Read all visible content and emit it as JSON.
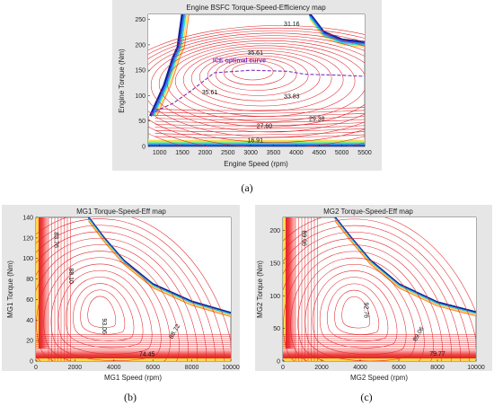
{
  "colors": {
    "contour": "#e0242a",
    "optimal_curve": "#7b2fbe",
    "panel_bg": "#ffffff",
    "figure_bg": "#e6e6e6",
    "axis": "#222222"
  },
  "chart_data": [
    {
      "id": "a",
      "type": "contour",
      "caption": "(a)",
      "title": "Engine BSFC Torque-Speed-Efficiency map",
      "xlabel": "Engine Speed (rpm)",
      "ylabel": "Engine Torque (Nm)",
      "xlim": [
        750,
        5500
      ],
      "ylim": [
        0,
        260
      ],
      "x_ticks": [
        1000,
        1500,
        2000,
        2500,
        3000,
        3500,
        4000,
        4500,
        5000,
        5500
      ],
      "y_ticks": [
        0,
        50,
        100,
        150,
        200,
        250
      ],
      "grid": false,
      "max_torque_curve": [
        {
          "x": 800,
          "y": 60
        },
        {
          "x": 1100,
          "y": 120
        },
        {
          "x": 1300,
          "y": 175
        },
        {
          "x": 1400,
          "y": 195
        },
        {
          "x": 1500,
          "y": 260
        }
      ],
      "max_torque_curve_right": [
        {
          "x": 4300,
          "y": 260
        },
        {
          "x": 4600,
          "y": 225
        },
        {
          "x": 5000,
          "y": 210
        },
        {
          "x": 5500,
          "y": 205
        }
      ],
      "optimal_curve": {
        "label": "ICE optimal curve",
        "points": [
          {
            "x": 800,
            "y": 65
          },
          {
            "x": 1300,
            "y": 85
          },
          {
            "x": 1700,
            "y": 110
          },
          {
            "x": 2200,
            "y": 145
          },
          {
            "x": 3000,
            "y": 150
          },
          {
            "x": 3800,
            "y": 148
          },
          {
            "x": 4200,
            "y": 142
          },
          {
            "x": 5000,
            "y": 140
          },
          {
            "x": 5500,
            "y": 138
          }
        ]
      },
      "contour_labels": [
        {
          "text": "31.16",
          "x": 3900,
          "y": 237
        },
        {
          "text": "35.61",
          "x": 3100,
          "y": 180
        },
        {
          "text": "35.61",
          "x": 2100,
          "y": 103
        },
        {
          "text": "33.83",
          "x": 3900,
          "y": 95
        },
        {
          "text": "27.60",
          "x": 3300,
          "y": 36
        },
        {
          "text": "29.38",
          "x": 4450,
          "y": 50
        },
        {
          "text": "16.91",
          "x": 3100,
          "y": 8
        }
      ]
    },
    {
      "id": "b",
      "type": "contour",
      "caption": "(b)",
      "title": "MG1 Torque-Speed-Eff map",
      "xlabel": "MG1 Speed (rpm)",
      "ylabel": "MG1 Torque (Nm)",
      "xlim": [
        0,
        10000
      ],
      "ylim": [
        0,
        140
      ],
      "x_ticks": [
        0,
        2000,
        4000,
        6000,
        8000,
        10000
      ],
      "y_ticks": [
        0,
        20,
        40,
        60,
        80,
        100,
        120,
        140
      ],
      "grid": false,
      "max_torque_curve": [
        {
          "x": 0,
          "y": 140
        },
        {
          "x": 2700,
          "y": 140
        },
        {
          "x": 3500,
          "y": 120
        },
        {
          "x": 4500,
          "y": 98
        },
        {
          "x": 6000,
          "y": 75
        },
        {
          "x": 8000,
          "y": 58
        },
        {
          "x": 10000,
          "y": 47
        }
      ],
      "contour_labels": [
        {
          "text": "83.76",
          "x": 950,
          "y": 118,
          "rotate": 90
        },
        {
          "text": "88.10",
          "x": 1700,
          "y": 83,
          "rotate": 90
        },
        {
          "text": "93.06",
          "x": 3400,
          "y": 34,
          "rotate": 90
        },
        {
          "text": "88.72",
          "x": 7200,
          "y": 28,
          "rotate": -60
        },
        {
          "text": "74.45",
          "x": 5700,
          "y": 5
        }
      ]
    },
    {
      "id": "c",
      "type": "contour",
      "caption": "(c)",
      "title": "MG2 Torque-Speed-Eff map",
      "xlabel": "MG2 Speed (rpm)",
      "ylabel": "MG2 Torque (Nm)",
      "xlim": [
        0,
        10000
      ],
      "ylim": [
        0,
        220
      ],
      "x_ticks": [
        0,
        2000,
        4000,
        6000,
        8000,
        10000
      ],
      "y_ticks": [
        0,
        50,
        100,
        150,
        200
      ],
      "grid": false,
      "max_torque_curve": [
        {
          "x": 0,
          "y": 220
        },
        {
          "x": 2700,
          "y": 220
        },
        {
          "x": 3500,
          "y": 190
        },
        {
          "x": 4500,
          "y": 155
        },
        {
          "x": 6000,
          "y": 118
        },
        {
          "x": 8000,
          "y": 90
        },
        {
          "x": 10000,
          "y": 75
        }
      ],
      "contour_labels": [
        {
          "text": "89.06",
          "x": 1000,
          "y": 188,
          "rotate": 90
        },
        {
          "text": "92.76",
          "x": 4200,
          "y": 78,
          "rotate": 90
        },
        {
          "text": "89.06",
          "x": 7100,
          "y": 40,
          "rotate": -60
        },
        {
          "text": "79.77",
          "x": 8000,
          "y": 8
        }
      ]
    }
  ]
}
